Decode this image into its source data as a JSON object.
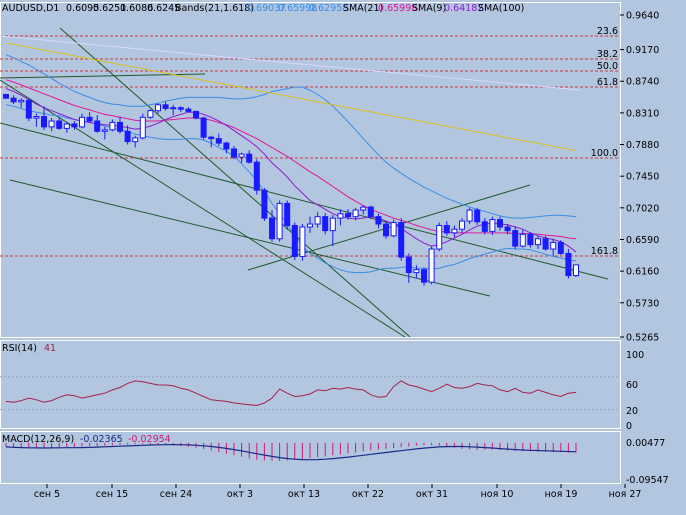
{
  "header": {
    "symbol": "AUDUSD,D1",
    "ohlc": [
      "0.6095",
      "0.6251",
      "0.6086",
      "0.6245"
    ],
    "bands_label": "Bands(21,1.618)",
    "bands_vals": [
      "0.69037",
      "0.65998",
      "0.62958"
    ],
    "sma21_label": "SMA(21)",
    "sma21_val": "0.65998",
    "sma9_label": "SMA(9)",
    "sma9_val": "0.64182",
    "sma100_label": "SMA(100)"
  },
  "colors": {
    "bg": "#b3c6e0",
    "candle": "#1a1aff",
    "sma9": "#8c1cd1",
    "sma21": "#e0189a",
    "band": "#3a8ce8",
    "sma100": "#d8c020",
    "fib": "#c83a3a",
    "trend": "#1f5a2a",
    "rsi": "#a3244a",
    "macd": "#1b2a88",
    "signal": "#d01880"
  },
  "price_axis": [
    "0.9640",
    "0.9170",
    "0.8740",
    "0.8310",
    "0.7880",
    "0.7450",
    "0.7020",
    "0.6590",
    "0.6160",
    "0.5730",
    "0.5265"
  ],
  "fib_labels": [
    "23.6",
    "38.2",
    "50.0",
    "61.8",
    "100.0",
    "161.8"
  ],
  "rsi": {
    "label": "RSI(14)",
    "value": "41",
    "ticks": [
      "100",
      "60",
      "20",
      "0"
    ]
  },
  "macd": {
    "label": "MACD(12,26,9)",
    "value1": "-0.02365",
    "value2": "-0.02954",
    "ticks": [
      "0.00477",
      "-0.09547"
    ]
  },
  "x_axis": [
    "сен 5",
    "сен 15",
    "сен 24",
    "окт 3",
    "окт 13",
    "окт 22",
    "окт 31",
    "ноя 10",
    "ноя 19",
    "ноя 27"
  ],
  "chart_data": {
    "type": "candlestick",
    "price_range": [
      0.5265,
      0.964
    ],
    "candles": [
      [
        0.856,
        0.857,
        0.85,
        0.851
      ],
      [
        0.851,
        0.855,
        0.843,
        0.846
      ],
      [
        0.846,
        0.851,
        0.838,
        0.848
      ],
      [
        0.848,
        0.85,
        0.82,
        0.824
      ],
      [
        0.824,
        0.83,
        0.812,
        0.826
      ],
      [
        0.826,
        0.84,
        0.808,
        0.812
      ],
      [
        0.812,
        0.824,
        0.806,
        0.82
      ],
      [
        0.82,
        0.825,
        0.808,
        0.81
      ],
      [
        0.81,
        0.818,
        0.804,
        0.816
      ],
      [
        0.816,
        0.82,
        0.808,
        0.812
      ],
      [
        0.812,
        0.83,
        0.81,
        0.825
      ],
      [
        0.825,
        0.832,
        0.818,
        0.82
      ],
      [
        0.82,
        0.828,
        0.804,
        0.806
      ],
      [
        0.806,
        0.812,
        0.795,
        0.808
      ],
      [
        0.808,
        0.822,
        0.806,
        0.818
      ],
      [
        0.818,
        0.826,
        0.803,
        0.806
      ],
      [
        0.806,
        0.814,
        0.788,
        0.792
      ],
      [
        0.792,
        0.8,
        0.784,
        0.797
      ],
      [
        0.797,
        0.83,
        0.795,
        0.825
      ],
      [
        0.825,
        0.836,
        0.823,
        0.834
      ],
      [
        0.834,
        0.844,
        0.83,
        0.842
      ],
      [
        0.842,
        0.846,
        0.834,
        0.837
      ],
      [
        0.837,
        0.842,
        0.828,
        0.838
      ],
      [
        0.838,
        0.84,
        0.832,
        0.836
      ],
      [
        0.836,
        0.839,
        0.832,
        0.833
      ],
      [
        0.833,
        0.834,
        0.822,
        0.824
      ],
      [
        0.824,
        0.826,
        0.795,
        0.798
      ],
      [
        0.798,
        0.8,
        0.784,
        0.796
      ],
      [
        0.796,
        0.803,
        0.786,
        0.79
      ],
      [
        0.79,
        0.792,
        0.776,
        0.782
      ],
      [
        0.782,
        0.786,
        0.768,
        0.771
      ],
      [
        0.771,
        0.777,
        0.763,
        0.775
      ],
      [
        0.775,
        0.78,
        0.762,
        0.764
      ],
      [
        0.764,
        0.768,
        0.72,
        0.726
      ],
      [
        0.726,
        0.729,
        0.684,
        0.688
      ],
      [
        0.688,
        0.699,
        0.656,
        0.66
      ],
      [
        0.66,
        0.712,
        0.656,
        0.708
      ],
      [
        0.708,
        0.712,
        0.672,
        0.678
      ],
      [
        0.678,
        0.682,
        0.631,
        0.636
      ],
      [
        0.636,
        0.68,
        0.63,
        0.676
      ],
      [
        0.676,
        0.69,
        0.668,
        0.68
      ],
      [
        0.68,
        0.696,
        0.675,
        0.69
      ],
      [
        0.69,
        0.695,
        0.666,
        0.671
      ],
      [
        0.671,
        0.692,
        0.65,
        0.688
      ],
      [
        0.688,
        0.7,
        0.678,
        0.694
      ],
      [
        0.694,
        0.7,
        0.686,
        0.69
      ],
      [
        0.69,
        0.702,
        0.685,
        0.699
      ],
      [
        0.699,
        0.706,
        0.693,
        0.703
      ],
      [
        0.703,
        0.705,
        0.687,
        0.69
      ],
      [
        0.69,
        0.694,
        0.674,
        0.68
      ],
      [
        0.68,
        0.684,
        0.66,
        0.664
      ],
      [
        0.664,
        0.686,
        0.662,
        0.682
      ],
      [
        0.682,
        0.688,
        0.63,
        0.635
      ],
      [
        0.635,
        0.64,
        0.6,
        0.614
      ],
      [
        0.614,
        0.624,
        0.606,
        0.618
      ],
      [
        0.618,
        0.621,
        0.596,
        0.601
      ],
      [
        0.601,
        0.65,
        0.598,
        0.646
      ],
      [
        0.646,
        0.682,
        0.643,
        0.678
      ],
      [
        0.678,
        0.684,
        0.664,
        0.668
      ],
      [
        0.668,
        0.678,
        0.662,
        0.673
      ],
      [
        0.673,
        0.688,
        0.668,
        0.684
      ],
      [
        0.684,
        0.702,
        0.68,
        0.699
      ],
      [
        0.699,
        0.702,
        0.679,
        0.683
      ],
      [
        0.683,
        0.688,
        0.666,
        0.67
      ],
      [
        0.67,
        0.69,
        0.665,
        0.686
      ],
      [
        0.686,
        0.69,
        0.671,
        0.676
      ],
      [
        0.676,
        0.68,
        0.666,
        0.671
      ],
      [
        0.671,
        0.677,
        0.646,
        0.65
      ],
      [
        0.65,
        0.672,
        0.648,
        0.666
      ],
      [
        0.666,
        0.669,
        0.648,
        0.652
      ],
      [
        0.652,
        0.664,
        0.646,
        0.66
      ],
      [
        0.66,
        0.664,
        0.644,
        0.646
      ],
      [
        0.646,
        0.66,
        0.636,
        0.655
      ],
      [
        0.655,
        0.658,
        0.638,
        0.64
      ],
      [
        0.64,
        0.646,
        0.606,
        0.61
      ],
      [
        0.61,
        0.625,
        0.608,
        0.6245
      ]
    ],
    "sma9": [
      0.864,
      0.86,
      0.855,
      0.849,
      0.843,
      0.838,
      0.834,
      0.83,
      0.826,
      0.822,
      0.82,
      0.818,
      0.816,
      0.815,
      0.814,
      0.813,
      0.811,
      0.809,
      0.81,
      0.813,
      0.817,
      0.822,
      0.826,
      0.829,
      0.832,
      0.832,
      0.829,
      0.825,
      0.82,
      0.814,
      0.807,
      0.8,
      0.793,
      0.785,
      0.775,
      0.763,
      0.754,
      0.744,
      0.732,
      0.722,
      0.712,
      0.706,
      0.7,
      0.694,
      0.69,
      0.688,
      0.687,
      0.688,
      0.69,
      0.688,
      0.684,
      0.68,
      0.674,
      0.667,
      0.66,
      0.654,
      0.65,
      0.652,
      0.656,
      0.661,
      0.666,
      0.672,
      0.677,
      0.68,
      0.681,
      0.68,
      0.679,
      0.676,
      0.673,
      0.668,
      0.664,
      0.661,
      0.659,
      0.656,
      0.65,
      0.642
    ],
    "sma21": [
      0.876,
      0.873,
      0.869,
      0.865,
      0.861,
      0.857,
      0.853,
      0.849,
      0.845,
      0.841,
      0.838,
      0.835,
      0.832,
      0.829,
      0.827,
      0.825,
      0.823,
      0.821,
      0.82,
      0.82,
      0.82,
      0.821,
      0.822,
      0.823,
      0.824,
      0.824,
      0.823,
      0.821,
      0.818,
      0.815,
      0.811,
      0.806,
      0.801,
      0.796,
      0.79,
      0.784,
      0.778,
      0.772,
      0.765,
      0.758,
      0.751,
      0.745,
      0.738,
      0.731,
      0.724,
      0.717,
      0.711,
      0.705,
      0.7,
      0.696,
      0.692,
      0.688,
      0.685,
      0.682,
      0.678,
      0.675,
      0.672,
      0.67,
      0.669,
      0.668,
      0.668,
      0.668,
      0.668,
      0.668,
      0.668,
      0.668,
      0.668,
      0.667,
      0.667,
      0.667,
      0.666,
      0.665,
      0.664,
      0.663,
      0.661,
      0.66
    ],
    "band_upper": [
      0.91,
      0.906,
      0.901,
      0.896,
      0.89,
      0.884,
      0.878,
      0.871,
      0.866,
      0.86,
      0.856,
      0.852,
      0.848,
      0.845,
      0.843,
      0.842,
      0.84,
      0.84,
      0.84,
      0.842,
      0.844,
      0.847,
      0.849,
      0.851,
      0.852,
      0.852,
      0.852,
      0.852,
      0.852,
      0.851,
      0.85,
      0.85,
      0.851,
      0.853,
      0.856,
      0.86,
      0.862,
      0.864,
      0.866,
      0.866,
      0.862,
      0.856,
      0.849,
      0.84,
      0.83,
      0.819,
      0.808,
      0.796,
      0.785,
      0.774,
      0.764,
      0.756,
      0.749,
      0.742,
      0.736,
      0.73,
      0.725,
      0.72,
      0.715,
      0.711,
      0.707,
      0.703,
      0.7,
      0.697,
      0.694,
      0.691,
      0.689,
      0.688,
      0.688,
      0.689,
      0.69,
      0.691,
      0.692,
      0.692,
      0.691,
      0.69
    ],
    "band_lower": [
      0.842,
      0.84,
      0.837,
      0.834,
      0.832,
      0.83,
      0.828,
      0.827,
      0.824,
      0.822,
      0.82,
      0.818,
      0.816,
      0.813,
      0.811,
      0.808,
      0.806,
      0.802,
      0.8,
      0.798,
      0.796,
      0.795,
      0.795,
      0.795,
      0.796,
      0.796,
      0.794,
      0.79,
      0.784,
      0.779,
      0.772,
      0.762,
      0.751,
      0.739,
      0.724,
      0.708,
      0.694,
      0.68,
      0.664,
      0.65,
      0.64,
      0.634,
      0.627,
      0.622,
      0.618,
      0.615,
      0.614,
      0.614,
      0.615,
      0.618,
      0.62,
      0.62,
      0.621,
      0.622,
      0.62,
      0.62,
      0.619,
      0.62,
      0.623,
      0.625,
      0.629,
      0.633,
      0.636,
      0.639,
      0.642,
      0.645,
      0.647,
      0.646,
      0.646,
      0.645,
      0.642,
      0.639,
      0.636,
      0.634,
      0.631,
      0.63
    ],
    "rsi": [
      30,
      29,
      31,
      34,
      32,
      29,
      31,
      35,
      38,
      37,
      34,
      36,
      38,
      40,
      44,
      47,
      52,
      55,
      54,
      52,
      50,
      50,
      49,
      46,
      44,
      40,
      36,
      32,
      31,
      30,
      28,
      27,
      26,
      25,
      28,
      34,
      45,
      40,
      36,
      37,
      39,
      44,
      43,
      46,
      45,
      47,
      45,
      44,
      38,
      35,
      36,
      48,
      55,
      50,
      48,
      45,
      42,
      46,
      51,
      47,
      46,
      48,
      52,
      50,
      49,
      44,
      42,
      46,
      41,
      40,
      44,
      41,
      38,
      36,
      40,
      41
    ],
    "macd": [
      -0.01,
      -0.012,
      -0.013,
      -0.014,
      -0.014,
      -0.013,
      -0.012,
      -0.011,
      -0.01,
      -0.01,
      -0.009,
      -0.008,
      -0.008,
      -0.007,
      -0.006,
      -0.005,
      -0.004,
      -0.003,
      -0.003,
      -0.003,
      -0.004,
      -0.005,
      -0.006,
      -0.008,
      -0.01,
      -0.012,
      -0.015,
      -0.019,
      -0.023,
      -0.027,
      -0.031,
      -0.035,
      -0.039,
      -0.042,
      -0.044,
      -0.045,
      -0.045,
      -0.044,
      -0.042,
      -0.04,
      -0.038,
      -0.036,
      -0.034,
      -0.031,
      -0.029,
      -0.026,
      -0.024,
      -0.021,
      -0.019,
      -0.017,
      -0.015,
      -0.013,
      -0.011,
      -0.009,
      -0.007,
      -0.006,
      -0.006,
      -0.007,
      -0.009,
      -0.012,
      -0.015,
      -0.016,
      -0.017,
      -0.017,
      -0.017,
      -0.018,
      -0.019,
      -0.02,
      -0.021,
      -0.021,
      -0.022,
      -0.022,
      -0.023,
      -0.023,
      -0.024,
      -0.024
    ]
  }
}
